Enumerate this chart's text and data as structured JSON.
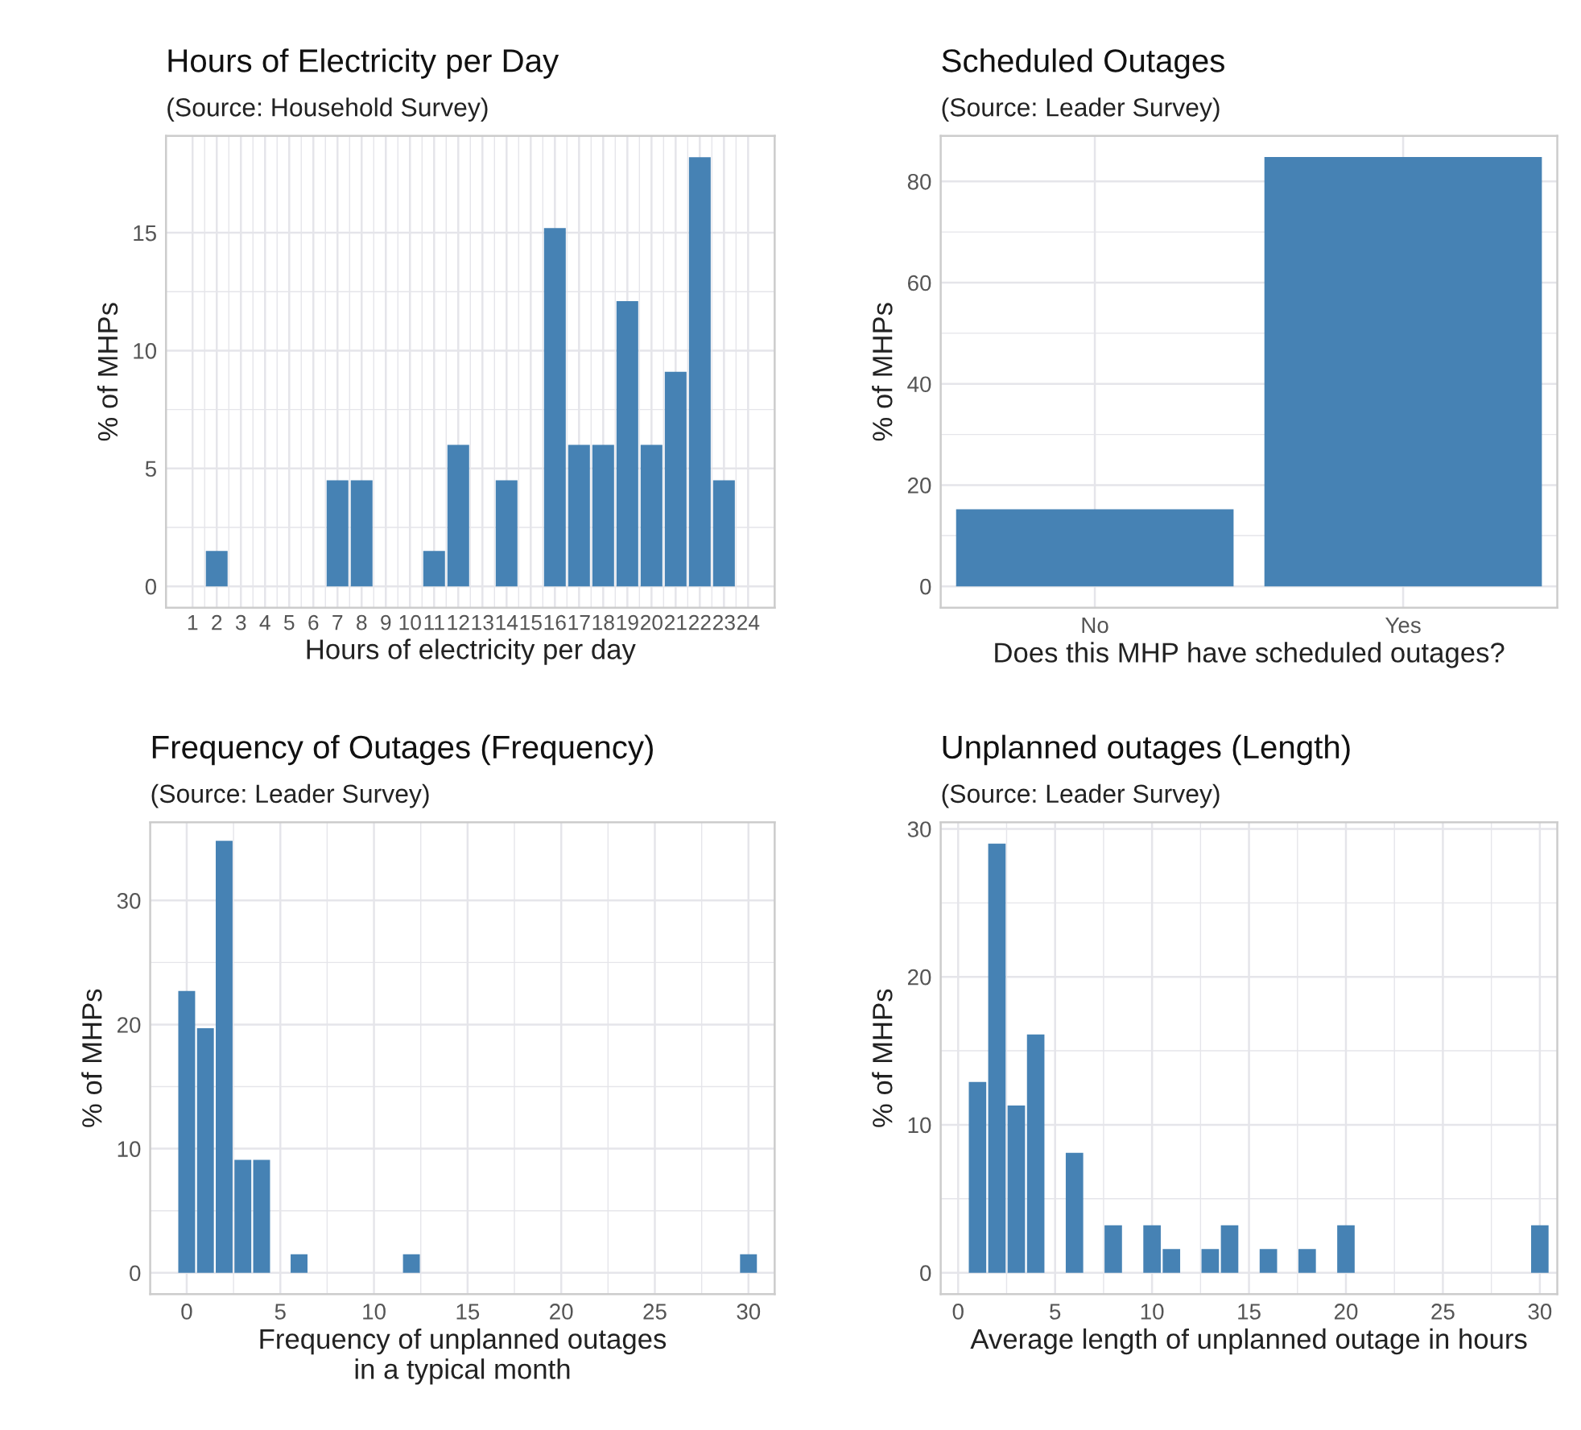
{
  "chart_data": [
    {
      "type": "bar",
      "title": "Hours of Electricity per Day",
      "subtitle": "(Source: Household Survey)",
      "xlabel": "Hours of electricity per day",
      "ylabel": "% of MHPs",
      "categories": [
        "1",
        "2",
        "3",
        "4",
        "5",
        "6",
        "7",
        "8",
        "9",
        "10",
        "11",
        "12",
        "13",
        "14",
        "15",
        "16",
        "17",
        "18",
        "19",
        "20",
        "21",
        "22",
        "23",
        "24"
      ],
      "values": [
        null,
        1.5,
        null,
        null,
        null,
        null,
        4.5,
        4.5,
        null,
        null,
        1.5,
        6,
        null,
        4.5,
        null,
        15.2,
        6,
        6,
        12.1,
        6,
        9.1,
        18.2,
        4.5,
        null
      ],
      "color": "#4682b4",
      "ylim": [
        -0.91,
        19.11
      ],
      "yticks": [
        0,
        5,
        10,
        15
      ],
      "grid": true
    },
    {
      "type": "bar",
      "title": "Scheduled Outages",
      "subtitle": "(Source: Leader Survey)",
      "xlabel": "Does this MHP have scheduled outages?",
      "ylabel": "% of MHPs",
      "categories": [
        "No",
        "Yes"
      ],
      "values": [
        15.2,
        84.8
      ],
      "color": "#4682b4",
      "ylim": [
        -4.24,
        89.0
      ],
      "yticks": [
        0,
        20,
        40,
        60,
        80
      ],
      "grid": true
    },
    {
      "type": "bar",
      "title": "Frequency of Outages (Frequency)",
      "subtitle": "(Source: Leader Survey)",
      "xlabel": "Frequency of unplanned outages\nin a typical month",
      "ylabel": "% of MHPs",
      "x": [
        0,
        1,
        2,
        3,
        4,
        6,
        12,
        30
      ],
      "values": [
        22.7,
        19.7,
        34.8,
        9.1,
        9.1,
        1.5,
        1.5,
        1.5
      ],
      "color": "#4682b4",
      "xlim": [
        -1.95,
        31.4
      ],
      "xticks": [
        0,
        5,
        10,
        15,
        20,
        25,
        30
      ],
      "ylim": [
        -1.72,
        36.3
      ],
      "yticks": [
        0,
        10,
        20,
        30
      ],
      "grid": true
    },
    {
      "type": "bar",
      "title": "Unplanned outages (Length)",
      "subtitle": "(Source: Leader Survey)",
      "xlabel": "Average length of unplanned outage in hours",
      "ylabel": "% of MHPs",
      "x": [
        1,
        2,
        3,
        4,
        6,
        8,
        10,
        11,
        13,
        14,
        16,
        18,
        20,
        30
      ],
      "values": [
        12.9,
        29.0,
        11.3,
        16.1,
        8.1,
        3.2,
        3.2,
        1.6,
        1.6,
        3.2,
        1.6,
        1.6,
        3.2,
        3.2
      ],
      "color": "#4682b4",
      "xlim": [
        -0.9,
        30.9
      ],
      "xticks": [
        0,
        5,
        10,
        15,
        20,
        25,
        30
      ],
      "ylim": [
        -1.45,
        30.45
      ],
      "yticks": [
        0,
        10,
        20,
        30
      ],
      "grid": true
    }
  ]
}
